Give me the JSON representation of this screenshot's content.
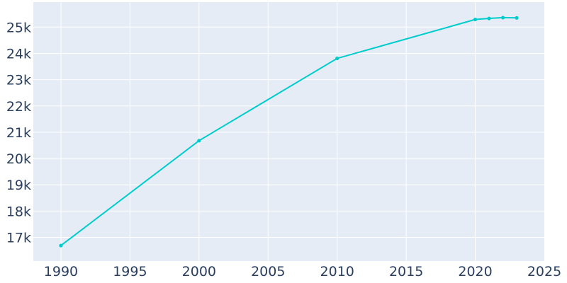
{
  "chart_data": {
    "type": "line",
    "title": "",
    "xlabel": "",
    "ylabel": "",
    "xlim": [
      1988,
      2025
    ],
    "ylim": [
      16100,
      25950
    ],
    "grid": true,
    "legend": "none",
    "x_ticks": [
      1990,
      1995,
      2000,
      2005,
      2010,
      2015,
      2020,
      2025
    ],
    "x_tick_labels": [
      "1990",
      "1995",
      "2000",
      "2005",
      "2010",
      "2015",
      "2020",
      "2025"
    ],
    "y_ticks": [
      17000,
      18000,
      19000,
      20000,
      21000,
      22000,
      23000,
      24000,
      25000
    ],
    "y_tick_labels": [
      "17k",
      "18k",
      "19k",
      "20k",
      "21k",
      "22k",
      "23k",
      "24k",
      "25k"
    ],
    "series": [
      {
        "color": "#00cccc",
        "x": [
          1990,
          2000,
          2010,
          2020,
          2021,
          2022,
          2023
        ],
        "values": [
          16690,
          20680,
          23810,
          25290,
          25330,
          25360,
          25350
        ]
      }
    ]
  },
  "colors": {
    "plot_background": "#e5ecf6",
    "grid": "#ffffff",
    "tick_text": "#2a3f5f"
  }
}
